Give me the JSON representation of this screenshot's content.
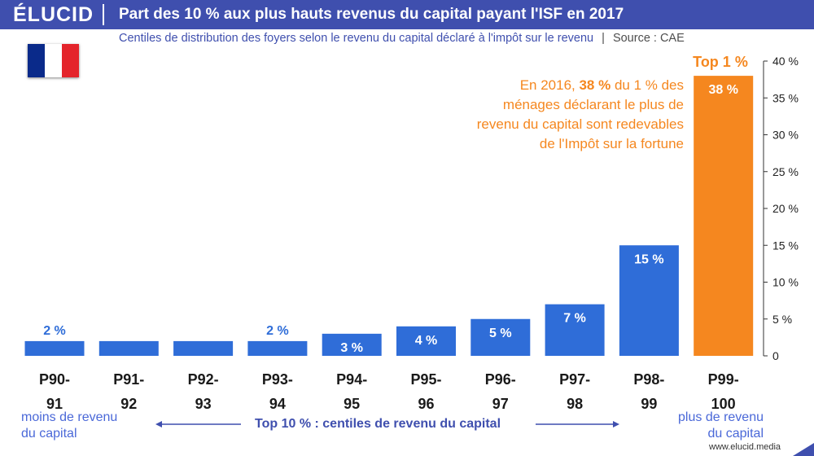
{
  "header": {
    "logo": "ÉLUCID",
    "title": "Part des 10 % aux plus hauts revenus du capital payant l'ISF en 2017"
  },
  "subtitle": {
    "text": "Centiles de distribution des foyers selon le revenu du capital déclaré à l'impôt sur le revenu",
    "separator": "|",
    "source": "Source : CAE"
  },
  "annotation": {
    "line1_pre": "En 2016, ",
    "line1_bold": "38 %",
    "line1_post": " du 1 % des",
    "line2": "ménages déclarant le plus de",
    "line3": "revenu du capital sont redevables",
    "line4": "de l'Impôt sur la fortune",
    "top1_label": "Top 1 %"
  },
  "footer": {
    "left_line1": "moins de revenu",
    "left_line2": "du capital",
    "right_line1": "plus de revenu",
    "right_line2": "du capital",
    "range_label": "Top 10 % : centiles de revenu du capital",
    "url": "www.elucid.media"
  },
  "colors": {
    "header": "#3f4fae",
    "bar": "#2f6dd8",
    "highlight": "#f5871f",
    "label_blue": "#2f6dd8",
    "footer_blue": "#4a68d8"
  },
  "chart_data": {
    "type": "bar",
    "categories": [
      [
        "P90-",
        "91"
      ],
      [
        "P91-",
        "92"
      ],
      [
        "P92-",
        "93"
      ],
      [
        "P93-",
        "94"
      ],
      [
        "P94-",
        "95"
      ],
      [
        "P95-",
        "96"
      ],
      [
        "P96-",
        "97"
      ],
      [
        "P97-",
        "98"
      ],
      [
        "P98-",
        "99"
      ],
      [
        "P99-",
        "100"
      ]
    ],
    "values": [
      2,
      2,
      2,
      2,
      3,
      4,
      5,
      7,
      15,
      38
    ],
    "data_labels": [
      "2 %",
      "",
      "",
      "2 %",
      "3 %",
      "4 %",
      "5 %",
      "7 %",
      "15 %",
      "38 %"
    ],
    "highlight_index": 9,
    "ylim": [
      0,
      40
    ],
    "y_ticks": [
      0,
      5,
      10,
      15,
      20,
      25,
      30,
      35,
      40
    ],
    "y_tick_labels": [
      "0",
      "5 %",
      "10 %",
      "15 %",
      "20 %",
      "25 %",
      "30 %",
      "35 %",
      "40 %"
    ],
    "y_axis_position": "right",
    "grid": false
  }
}
